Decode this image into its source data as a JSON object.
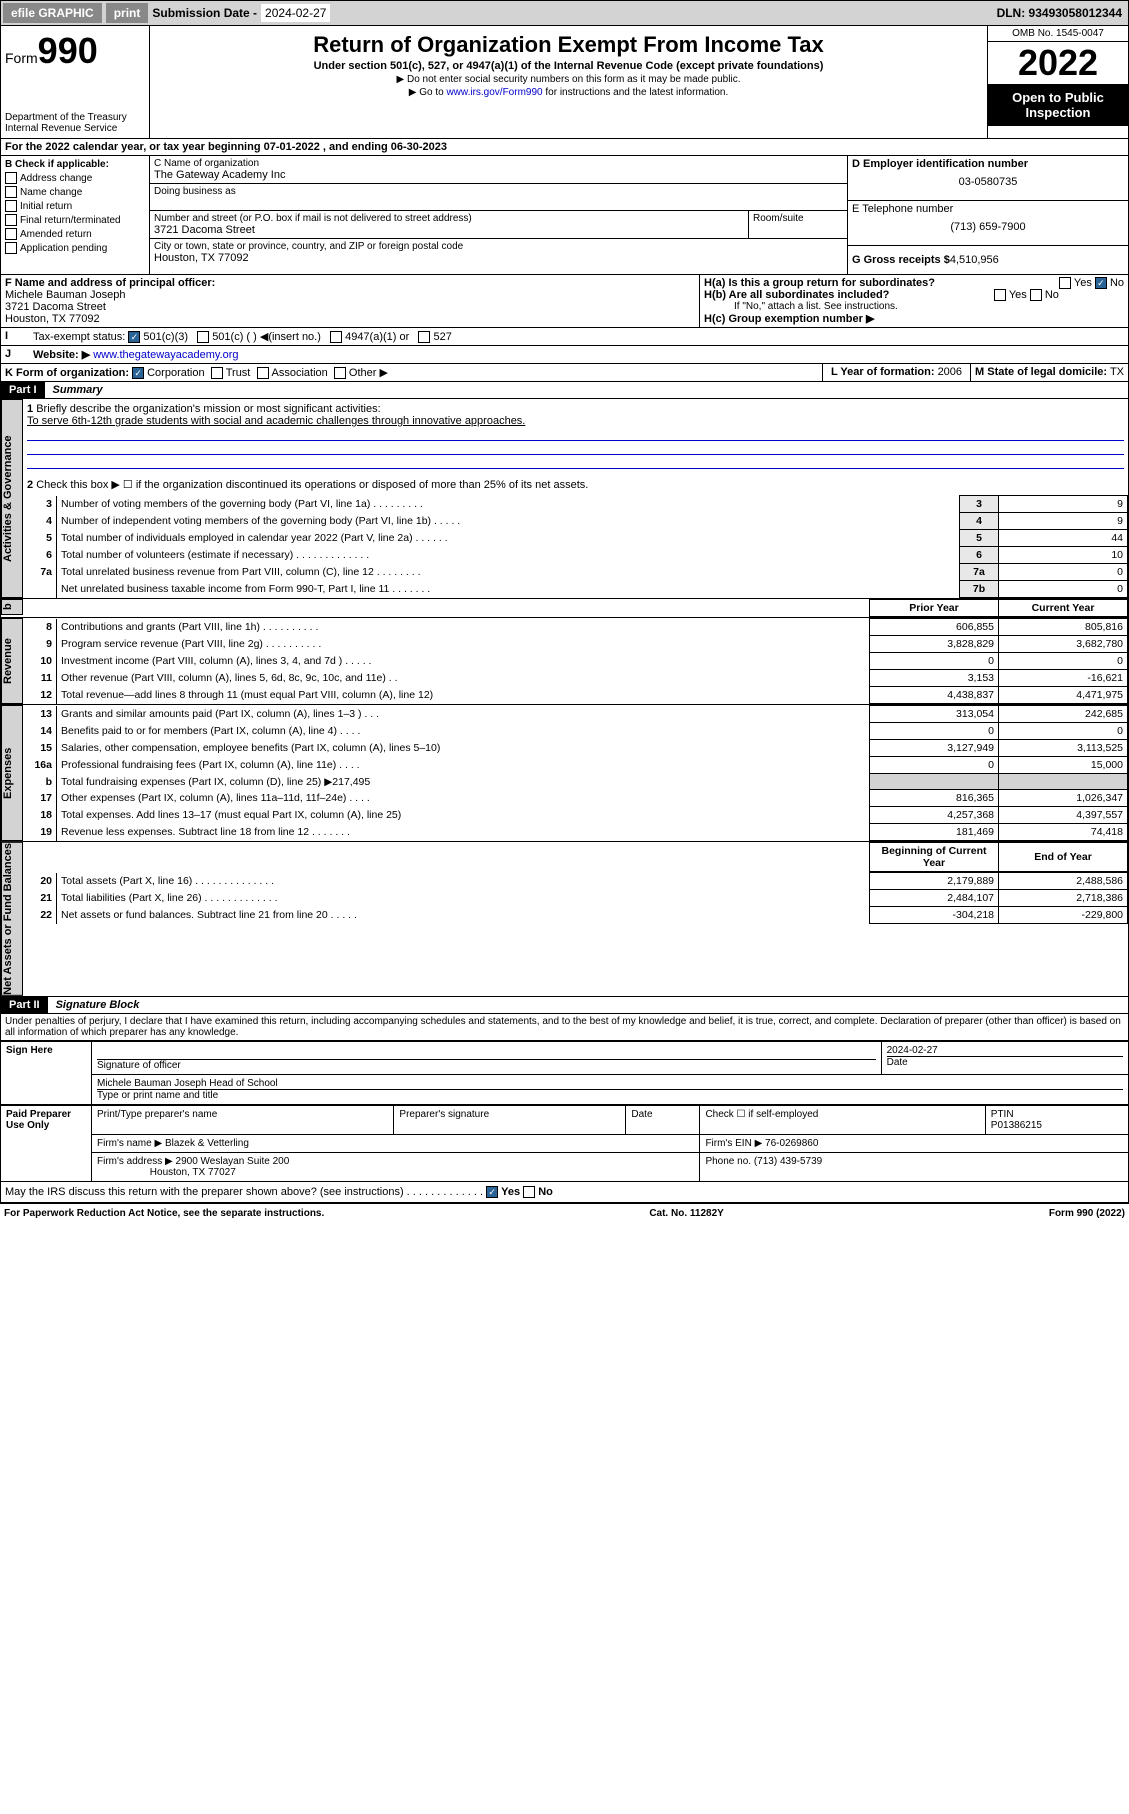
{
  "topbar": {
    "efile": "efile GRAPHIC",
    "print": "print",
    "subLabel": "Submission Date - ",
    "subDate": "2024-02-27",
    "dln": "DLN: 93493058012344"
  },
  "header": {
    "formWord": "Form",
    "formNum": "990",
    "dept": "Department of the Treasury",
    "irs": "Internal Revenue Service",
    "title": "Return of Organization Exempt From Income Tax",
    "subtitle": "Under section 501(c), 527, or 4947(a)(1) of the Internal Revenue Code (except private foundations)",
    "note1": "▶ Do not enter social security numbers on this form as it may be made public.",
    "note2": "▶ Go to ",
    "note2link": "www.irs.gov/Form990",
    "note2b": " for instructions and the latest information.",
    "omb": "OMB No. 1545-0047",
    "year": "2022",
    "inspection": "Open to Public Inspection"
  },
  "lineA": "For the 2022 calendar year, or tax year beginning 07-01-2022   , and ending 06-30-2023",
  "boxB": {
    "label": "B Check if applicable:",
    "items": [
      "Address change",
      "Name change",
      "Initial return",
      "Final return/terminated",
      "Amended return",
      "Application pending"
    ]
  },
  "boxC": {
    "label": "C Name of organization",
    "name": "The Gateway Academy Inc",
    "dba": "Doing business as",
    "addrLabel": "Number and street (or P.O. box if mail is not delivered to street address)",
    "addr": "3721 Dacoma Street",
    "room": "Room/suite",
    "cityLabel": "City or town, state or province, country, and ZIP or foreign postal code",
    "city": "Houston, TX  77092"
  },
  "boxD": {
    "label": "D Employer identification number",
    "val": "03-0580735"
  },
  "boxE": {
    "label": "E Telephone number",
    "val": "(713) 659-7900"
  },
  "boxG": {
    "label": "G Gross receipts $",
    "val": "4,510,956"
  },
  "boxF": {
    "label": "F Name and address of principal officer:",
    "name": "Michele Bauman Joseph",
    "addr": "3721 Dacoma Street",
    "city": "Houston, TX  77092"
  },
  "boxH": {
    "a": "H(a)  Is this a group return for subordinates?",
    "b": "H(b)  Are all subordinates included?",
    "bnote": "If \"No,\" attach a list. See instructions.",
    "c": "H(c)  Group exemption number ▶"
  },
  "lineI": {
    "label": "Tax-exempt status:",
    "opts": [
      "501(c)(3)",
      "501(c) (  ) ◀(insert no.)",
      "4947(a)(1) or",
      "527"
    ]
  },
  "lineJ": {
    "label": "Website: ▶",
    "val": "www.thegatewayacademy.org"
  },
  "lineK": {
    "label": "K Form of organization:",
    "opts": [
      "Corporation",
      "Trust",
      "Association",
      "Other ▶"
    ]
  },
  "lineL": {
    "label": "L Year of formation:",
    "val": "2006"
  },
  "lineM": {
    "label": "M State of legal domicile:",
    "val": "TX"
  },
  "partI": {
    "header": "Part I",
    "title": "Summary"
  },
  "summary": {
    "q1": "Briefly describe the organization's mission or most significant activities:",
    "q1val": "To serve 6th-12th grade students with social and academic challenges through innovative approaches.",
    "q2": "Check this box ▶ ☐  if the organization discontinued its operations or disposed of more than 25% of its net assets.",
    "rows": [
      {
        "n": "3",
        "d": "Number of voting members of the governing body (Part VI, line 1a)  .   .   .   .   .   .   .   .   .",
        "l": "3",
        "v": "9"
      },
      {
        "n": "4",
        "d": "Number of independent voting members of the governing body (Part VI, line 1b)  .   .   .   .   .",
        "l": "4",
        "v": "9"
      },
      {
        "n": "5",
        "d": "Total number of individuals employed in calendar year 2022 (Part V, line 2a)  .   .   .   .   .   .",
        "l": "5",
        "v": "44"
      },
      {
        "n": "6",
        "d": "Total number of volunteers (estimate if necessary)  .   .   .   .   .   .   .   .   .   .   .   .   .",
        "l": "6",
        "v": "10"
      },
      {
        "n": "7a",
        "d": "Total unrelated business revenue from Part VIII, column (C), line 12  .   .   .   .   .   .   .   .",
        "l": "7a",
        "v": "0"
      },
      {
        "n": "",
        "d": "Net unrelated business taxable income from Form 990-T, Part I, line 11  .   .   .   .   .   .   .",
        "l": "7b",
        "v": "0"
      }
    ]
  },
  "revHeader": {
    "prior": "Prior Year",
    "curr": "Current Year"
  },
  "revenue": [
    {
      "n": "8",
      "d": "Contributions and grants (Part VIII, line 1h)  .   .   .   .   .   .   .   .   .   .",
      "p": "606,855",
      "c": "805,816"
    },
    {
      "n": "9",
      "d": "Program service revenue (Part VIII, line 2g)  .   .   .   .   .   .   .   .   .   .",
      "p": "3,828,829",
      "c": "3,682,780"
    },
    {
      "n": "10",
      "d": "Investment income (Part VIII, column (A), lines 3, 4, and 7d )  .   .   .   .   .",
      "p": "0",
      "c": "0"
    },
    {
      "n": "11",
      "d": "Other revenue (Part VIII, column (A), lines 5, 6d, 8c, 9c, 10c, and 11e)  .   .",
      "p": "3,153",
      "c": "-16,621"
    },
    {
      "n": "12",
      "d": "Total revenue—add lines 8 through 11 (must equal Part VIII, column (A), line 12)",
      "p": "4,438,837",
      "c": "4,471,975"
    }
  ],
  "expenses": [
    {
      "n": "13",
      "d": "Grants and similar amounts paid (Part IX, column (A), lines 1–3 )  .   .   .",
      "p": "313,054",
      "c": "242,685"
    },
    {
      "n": "14",
      "d": "Benefits paid to or for members (Part IX, column (A), line 4)  .   .   .   .",
      "p": "0",
      "c": "0"
    },
    {
      "n": "15",
      "d": "Salaries, other compensation, employee benefits (Part IX, column (A), lines 5–10)",
      "p": "3,127,949",
      "c": "3,113,525"
    },
    {
      "n": "16a",
      "d": "Professional fundraising fees (Part IX, column (A), line 11e)  .   .   .   .",
      "p": "0",
      "c": "15,000"
    },
    {
      "n": "b",
      "d": "Total fundraising expenses (Part IX, column (D), line 25) ▶217,495",
      "p": "",
      "c": "",
      "shade": true
    },
    {
      "n": "17",
      "d": "Other expenses (Part IX, column (A), lines 11a–11d, 11f–24e)  .   .   .   .",
      "p": "816,365",
      "c": "1,026,347"
    },
    {
      "n": "18",
      "d": "Total expenses. Add lines 13–17 (must equal Part IX, column (A), line 25)",
      "p": "4,257,368",
      "c": "4,397,557"
    },
    {
      "n": "19",
      "d": "Revenue less expenses. Subtract line 18 from line 12  .   .   .   .   .   .   .",
      "p": "181,469",
      "c": "74,418"
    }
  ],
  "netHeader": {
    "begin": "Beginning of Current Year",
    "end": "End of Year"
  },
  "net": [
    {
      "n": "20",
      "d": "Total assets (Part X, line 16)  .   .   .   .   .   .   .   .   .   .   .   .   .   .",
      "p": "2,179,889",
      "c": "2,488,586"
    },
    {
      "n": "21",
      "d": "Total liabilities (Part X, line 26)  .   .   .   .   .   .   .   .   .   .   .   .   .",
      "p": "2,484,107",
      "c": "2,718,386"
    },
    {
      "n": "22",
      "d": "Net assets or fund balances. Subtract line 21 from line 20  .   .   .   .   .",
      "p": "-304,218",
      "c": "-229,800"
    }
  ],
  "vlabels": {
    "gov": "Activities & Governance",
    "rev": "Revenue",
    "exp": "Expenses",
    "net": "Net Assets or Fund Balances"
  },
  "partII": {
    "header": "Part II",
    "title": "Signature Block"
  },
  "sig": {
    "penalty": "Under penalties of perjury, I declare that I have examined this return, including accompanying schedules and statements, and to the best of my knowledge and belief, it is true, correct, and complete. Declaration of preparer (other than officer) is based on all information of which preparer has any knowledge.",
    "signHere": "Sign Here",
    "sigOfficer": "Signature of officer",
    "date": "Date",
    "sigDate": "2024-02-27",
    "officerName": "Michele Bauman Joseph  Head of School",
    "typeName": "Type or print name and title",
    "paid": "Paid Preparer Use Only",
    "prepName": "Print/Type preparer's name",
    "prepSig": "Preparer's signature",
    "prepDate": "Date",
    "checkIf": "Check ☐ if self-employed",
    "ptin": "PTIN",
    "ptinVal": "P01386215",
    "firmName": "Firm's name  ▶",
    "firmVal": "Blazek & Vetterling",
    "firmEIN": "Firm's EIN ▶",
    "einVal": "76-0269860",
    "firmAddr": "Firm's address ▶",
    "addrVal": "2900 Weslayan Suite 200",
    "addrCity": "Houston, TX  77027",
    "phone": "Phone no.",
    "phoneVal": "(713) 439-5739",
    "discuss": "May the IRS discuss this return with the preparer shown above? (see instructions)  .   .   .   .   .   .   .   .   .   .   .   .   .",
    "yes": "Yes",
    "no": "No"
  },
  "footer": {
    "paperwork": "For Paperwork Reduction Act Notice, see the separate instructions.",
    "cat": "Cat. No. 11282Y",
    "form": "Form 990 (2022)"
  }
}
